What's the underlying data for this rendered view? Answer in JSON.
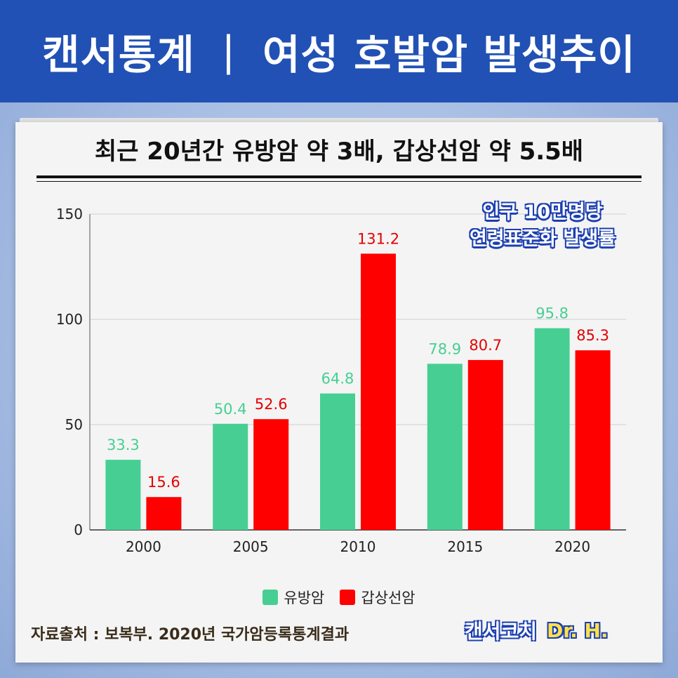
{
  "header": {
    "left": "캔서통계",
    "separator": "|",
    "right": "여성 호발암 발생추이"
  },
  "headline": "최근 20년간 유방암 약 3배, 갑상선암 약 5.5배",
  "badge": {
    "line1": "인구 10만명당",
    "line2": "연령표준화 발생률"
  },
  "chart_data": {
    "type": "bar",
    "categories": [
      "2000",
      "2005",
      "2010",
      "2015",
      "2020"
    ],
    "series": [
      {
        "name": "유방암",
        "values": [
          33.3,
          50.4,
          64.8,
          78.9,
          95.8
        ],
        "color": "#47cf93",
        "label_color": "#47cf93"
      },
      {
        "name": "갑상선암",
        "values": [
          15.6,
          52.6,
          131.2,
          80.7,
          85.3
        ],
        "color": "#ff0000",
        "label_color": "#e50000"
      }
    ],
    "value_labels": [
      [
        "33.3",
        "50.4",
        "64.8",
        "78.9",
        "95.8"
      ],
      [
        "15.6",
        "52.6",
        "131.2",
        "80.7",
        "85.3"
      ]
    ],
    "ylim": [
      0,
      150
    ],
    "yticks": [
      0,
      50,
      100,
      150
    ],
    "ytick_labels": [
      "0",
      "50",
      "100",
      "150"
    ],
    "grid": true,
    "legend_position": "bottom-center"
  },
  "legend": [
    "유방암",
    "갑상선암"
  ],
  "footer": {
    "source": "자료출처 : 보복부. 2020년 국가암등록통계결과",
    "brand": "캔서코치",
    "brand_highlight": "Dr. H."
  }
}
